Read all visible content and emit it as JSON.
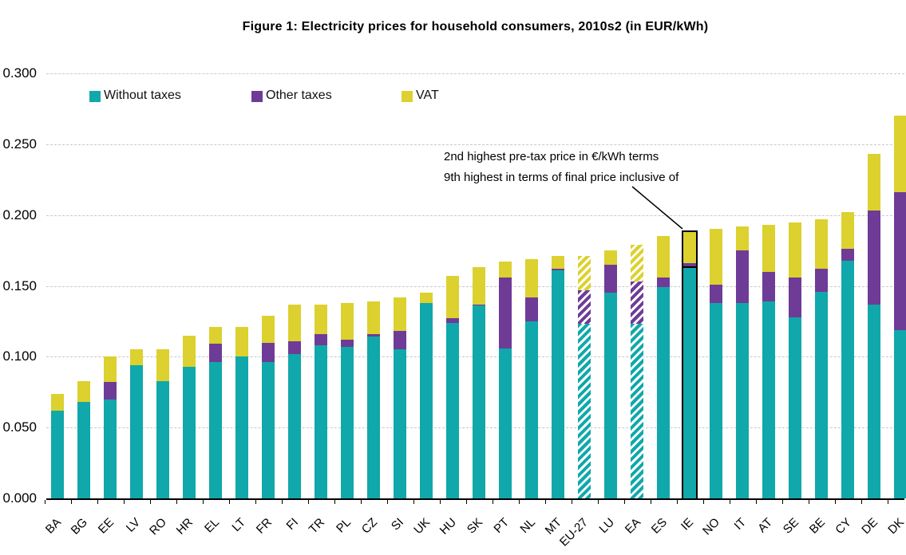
{
  "title": "Figure 1: Electricity prices for household consumers, 2010s2 (in EUR/kWh)",
  "annotation": {
    "line1": "2nd highest pre-tax price in €/kWh terms",
    "line2": "9th highest in terms of final price inclusive of"
  },
  "chart_data": {
    "type": "bar",
    "stacked": true,
    "title": "Figure 1: Electricity prices for household consumers, 2010s2 (in EUR/kWh)",
    "xlabel": "",
    "ylabel": "EUR/kWh",
    "ylim": [
      0,
      0.3
    ],
    "yticks": [
      "0.000",
      "0.050",
      "0.100",
      "0.150",
      "0.200",
      "0.250",
      "0.300"
    ],
    "grid": "dashed horizontal gridlines",
    "legend_position": "top-left inside plot",
    "categories": [
      "BA",
      "BG",
      "EE",
      "LV",
      "RO",
      "HR",
      "EL",
      "LT",
      "FR",
      "FI",
      "TR",
      "PL",
      "CZ",
      "SI",
      "UK",
      "HU",
      "SK",
      "PT",
      "NL",
      "MT",
      "EU-27",
      "LU",
      "EA",
      "ES",
      "IE",
      "NO",
      "IT",
      "AT",
      "SE",
      "BE",
      "CY",
      "DE",
      "DK"
    ],
    "series": [
      {
        "name": "Without taxes",
        "color": "#10a8aa",
        "values": [
          0.062,
          0.068,
          0.07,
          0.094,
          0.083,
          0.093,
          0.096,
          0.1,
          0.096,
          0.102,
          0.108,
          0.107,
          0.114,
          0.105,
          0.138,
          0.124,
          0.136,
          0.106,
          0.125,
          0.161,
          0.123,
          0.145,
          0.123,
          0.149,
          0.163,
          0.138,
          0.138,
          0.139,
          0.128,
          0.146,
          0.168,
          0.137,
          0.119
        ]
      },
      {
        "name": "Other taxes",
        "color": "#6e3b97",
        "values": [
          0.0,
          0.0,
          0.012,
          0.0,
          0.0,
          0.0,
          0.013,
          0.0,
          0.014,
          0.009,
          0.008,
          0.005,
          0.002,
          0.013,
          0.0,
          0.003,
          0.001,
          0.05,
          0.017,
          0.001,
          0.024,
          0.02,
          0.03,
          0.007,
          0.003,
          0.013,
          0.037,
          0.021,
          0.028,
          0.016,
          0.008,
          0.066,
          0.097
        ]
      },
      {
        "name": "VAT",
        "color": "#dcd12e",
        "values": [
          0.012,
          0.015,
          0.018,
          0.011,
          0.022,
          0.022,
          0.012,
          0.021,
          0.019,
          0.026,
          0.021,
          0.026,
          0.023,
          0.024,
          0.007,
          0.03,
          0.026,
          0.011,
          0.027,
          0.009,
          0.024,
          0.01,
          0.026,
          0.029,
          0.022,
          0.039,
          0.017,
          0.033,
          0.039,
          0.035,
          0.026,
          0.04,
          0.054
        ]
      }
    ],
    "hatched_categories": [
      "EU-27",
      "EA"
    ],
    "highlighted_category": "IE",
    "grid_color": "#c9c9c9",
    "axis_color": "#000000"
  }
}
